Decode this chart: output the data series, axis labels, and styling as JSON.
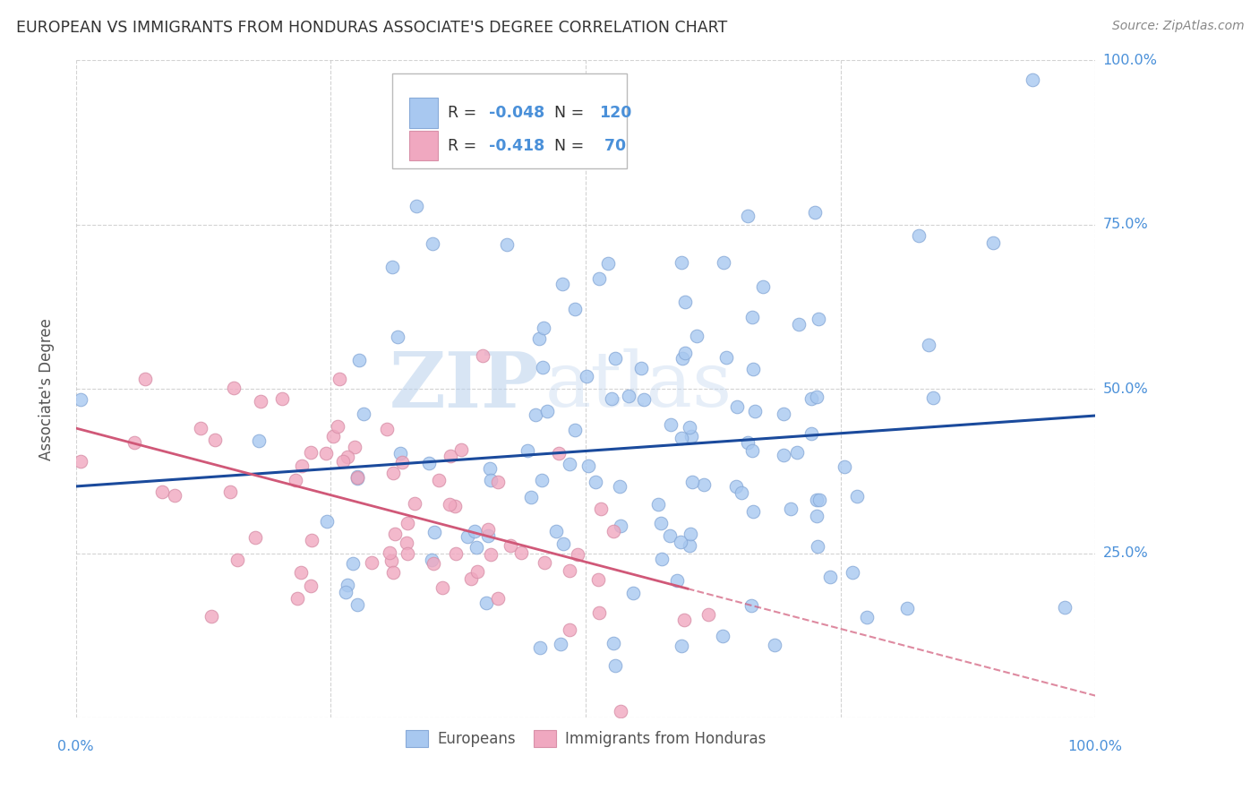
{
  "title": "EUROPEAN VS IMMIGRANTS FROM HONDURAS ASSOCIATE'S DEGREE CORRELATION CHART",
  "source": "Source: ZipAtlas.com",
  "ylabel": "Associate's Degree",
  "blue_color": "#a8c8f0",
  "pink_color": "#f0a8c0",
  "blue_line_color": "#1a4a9c",
  "pink_line_color": "#d05878",
  "axis_label_color": "#4a90d9",
  "title_color": "#333333",
  "watermark_zip": "ZIP",
  "watermark_atlas": "atlas",
  "blue_R": -0.048,
  "blue_N": 120,
  "pink_R": -0.418,
  "pink_N": 70,
  "blue_seed": 42,
  "pink_seed": 99
}
